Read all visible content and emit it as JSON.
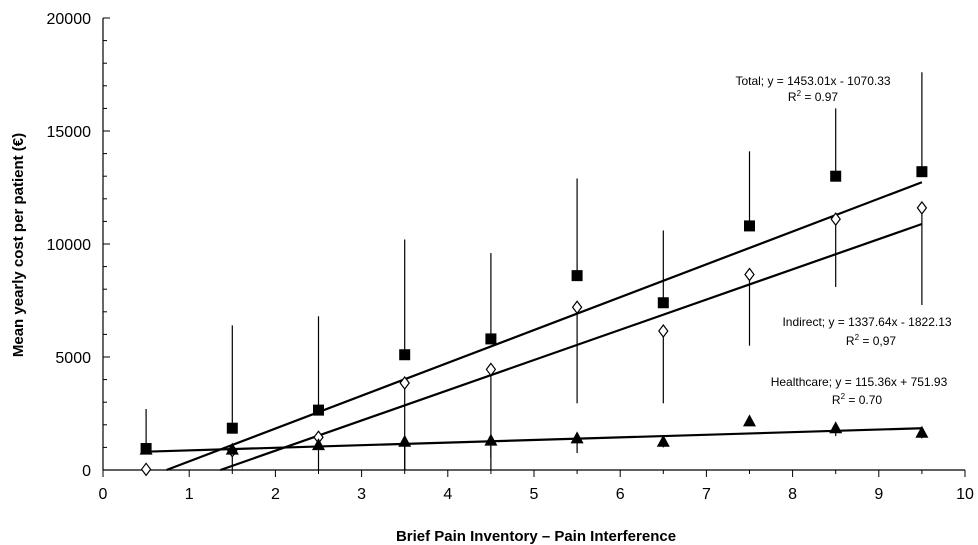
{
  "chart_data": {
    "type": "scatter",
    "xlabel": "Brief Pain Inventory – Pain Interference",
    "ylabel": "Mean yearly cost per patient (€)",
    "xlim": [
      0,
      10
    ],
    "ylim": [
      0,
      20000
    ],
    "x_ticks": [
      "0",
      "1",
      "2",
      "3",
      "4",
      "5",
      "6",
      "7",
      "8",
      "9",
      "10"
    ],
    "y_ticks": [
      "0",
      "5000",
      "10000",
      "15000",
      "20000"
    ],
    "grid": false,
    "x": [
      0.5,
      1.5,
      2.5,
      3.5,
      4.5,
      5.5,
      6.5,
      7.5,
      8.5,
      9.5
    ],
    "series": [
      {
        "key": "total",
        "marker": "filled-square",
        "values": [
          950,
          1850,
          2650,
          5100,
          5800,
          8600,
          7400,
          10800,
          13000,
          13200
        ],
        "error_upper": [
          2700,
          6400,
          6800,
          10200,
          9600,
          12900,
          10600,
          14100,
          16000,
          17600
        ],
        "trend": {
          "slope": 1453.01,
          "intercept": -1070.33
        }
      },
      {
        "key": "indirect",
        "marker": "open-diamond",
        "values": [
          30,
          850,
          1450,
          3850,
          4450,
          7200,
          6150,
          8650,
          11100,
          11600
        ],
        "error_lower": [
          30,
          850,
          1450,
          0,
          550,
          2950,
          2950,
          5500,
          8100,
          7300
        ],
        "trend": {
          "slope": 1337.64,
          "intercept": -1822.13
        }
      },
      {
        "key": "healthcare",
        "marker": "filled-triangle",
        "values": [
          900,
          900,
          1100,
          1250,
          1300,
          1400,
          1250,
          2150,
          1850,
          1650
        ],
        "error_lower": [
          900,
          0,
          0,
          0,
          0,
          750,
          1000,
          2150,
          1500,
          1400
        ],
        "trend": {
          "slope": 115.36,
          "intercept": 751.93
        }
      }
    ],
    "annotations": [
      {
        "key": "total",
        "line1": "Total; y = 1453.01x - 1070.33",
        "r2_prefix": "R",
        "r2_exp": "2",
        "r2_value": " = 0.97"
      },
      {
        "key": "indirect",
        "line1": "Indirect; y = 1337.64x - 1822.13",
        "r2_prefix": "R",
        "r2_exp": "2",
        "r2_value": " = 0,97"
      },
      {
        "key": "healthcare",
        "line1": "Healthcare; y = 115.36x + 751.93",
        "r2_prefix": "R",
        "r2_exp": "2",
        "r2_value": " = 0.70"
      }
    ]
  }
}
